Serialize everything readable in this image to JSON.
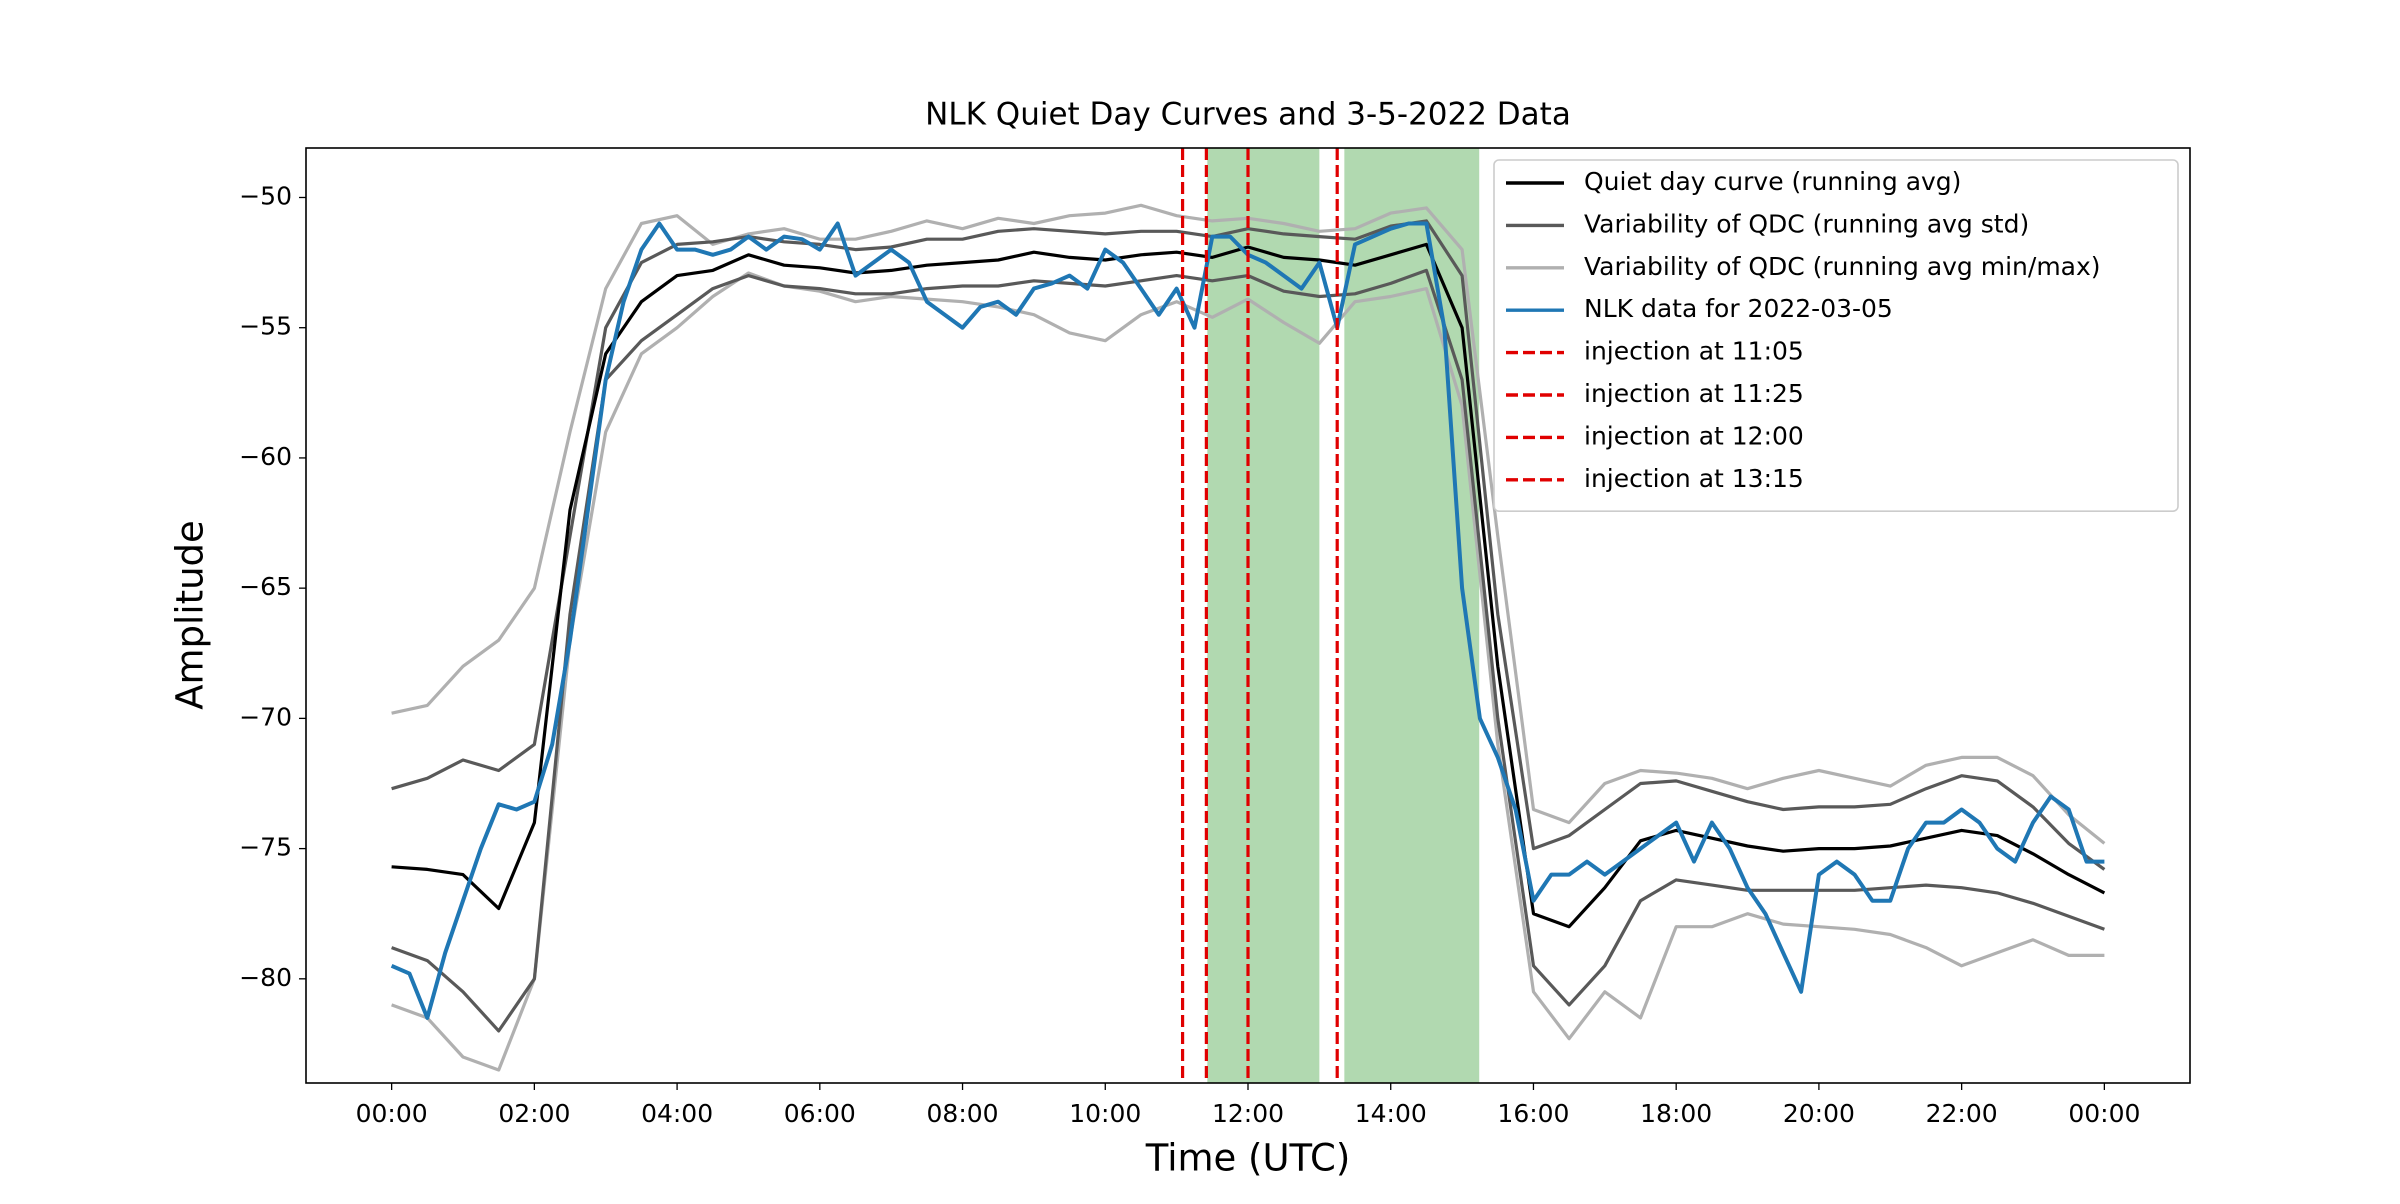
{
  "chart_data": {
    "type": "line",
    "title": "NLK Quiet Day Curves and 3-5-2022 Data",
    "x_label": "Time (UTC)",
    "y_label": "Amplitude",
    "xlim": [
      -1.2,
      25.2
    ],
    "ylim": [
      -84,
      -48.1
    ],
    "xticks": [
      {
        "value": 0,
        "label": "00:00"
      },
      {
        "value": 2,
        "label": "02:00"
      },
      {
        "value": 4,
        "label": "04:00"
      },
      {
        "value": 6,
        "label": "06:00"
      },
      {
        "value": 8,
        "label": "08:00"
      },
      {
        "value": 10,
        "label": "10:00"
      },
      {
        "value": 12,
        "label": "12:00"
      },
      {
        "value": 14,
        "label": "14:00"
      },
      {
        "value": 16,
        "label": "16:00"
      },
      {
        "value": 18,
        "label": "18:00"
      },
      {
        "value": 20,
        "label": "20:00"
      },
      {
        "value": 22,
        "label": "22:00"
      },
      {
        "value": 24,
        "label": "00:00"
      }
    ],
    "yticks": [
      {
        "value": -50,
        "label": "−50"
      },
      {
        "value": -55,
        "label": "−55"
      },
      {
        "value": -60,
        "label": "−60"
      },
      {
        "value": -65,
        "label": "−65"
      },
      {
        "value": -70,
        "label": "−70"
      },
      {
        "value": -75,
        "label": "−75"
      },
      {
        "value": -80,
        "label": "−80"
      }
    ],
    "legend": "upper right",
    "x": [
      0,
      0.5,
      1,
      1.5,
      2,
      2.5,
      3,
      3.5,
      4,
      4.5,
      5,
      5.5,
      6,
      6.5,
      7,
      7.5,
      8,
      8.5,
      9,
      9.5,
      10,
      10.5,
      11,
      11.5,
      12,
      12.5,
      13,
      13.5,
      14,
      14.5,
      15,
      15.5,
      16,
      16.5,
      17,
      17.5,
      18,
      18.5,
      19,
      19.5,
      20,
      20.5,
      21,
      21.5,
      22,
      22.5,
      23,
      23.5,
      24
    ],
    "series": [
      {
        "name": "Quiet day curve (running avg)",
        "color": "#000000",
        "values": [
          -75.7,
          -75.8,
          -76.0,
          -77.3,
          -74.0,
          -62,
          -56,
          -54,
          -53,
          -52.8,
          -52.2,
          -52.6,
          -52.7,
          -52.9,
          -52.8,
          -52.6,
          -52.5,
          -52.4,
          -52.1,
          -52.3,
          -52.4,
          -52.2,
          -52.1,
          -52.3,
          -51.9,
          -52.3,
          -52.4,
          -52.6,
          -52.2,
          -51.8,
          -55,
          -68,
          -77.5,
          -78,
          -76.5,
          -74.7,
          -74.3,
          -74.6,
          -74.9,
          -75.1,
          -75.0,
          -75.0,
          -74.9,
          -74.6,
          -74.3,
          -74.5,
          -75.2,
          -76.0,
          -76.7
        ]
      },
      {
        "name": "Variability of QDC (running avg std)",
        "color": "#595959",
        "values": [
          -72.7,
          -72.3,
          -71.6,
          -72.0,
          -71,
          -63,
          -55,
          -52.5,
          -51.8,
          -51.7,
          -51.5,
          -51.7,
          -51.8,
          -52,
          -51.9,
          -51.6,
          -51.6,
          -51.3,
          -51.2,
          -51.3,
          -51.4,
          -51.3,
          -51.3,
          -51.5,
          -51.2,
          -51.4,
          -51.5,
          -51.6,
          -51.1,
          -50.9,
          -53,
          -66,
          -75,
          -74.5,
          -73.5,
          -72.5,
          -72.4,
          -72.8,
          -73.2,
          -73.5,
          -73.4,
          -73.4,
          -73.3,
          -72.7,
          -72.2,
          -72.4,
          -73.4,
          -74.8,
          -75.8
        ],
        "lower": [
          -78.8,
          -79.3,
          -80.5,
          -82.0,
          -80,
          -66,
          -57,
          -55.5,
          -54.5,
          -53.5,
          -53,
          -53.4,
          -53.5,
          -53.7,
          -53.7,
          -53.5,
          -53.4,
          -53.4,
          -53.2,
          -53.3,
          -53.4,
          -53.2,
          -53,
          -53.2,
          -53,
          -53.6,
          -53.8,
          -53.7,
          -53.3,
          -52.8,
          -57,
          -70,
          -79.5,
          -81,
          -79.5,
          -77,
          -76.2,
          -76.4,
          -76.6,
          -76.6,
          -76.6,
          -76.6,
          -76.5,
          -76.4,
          -76.5,
          -76.7,
          -77.1,
          -77.6,
          -78.1
        ]
      },
      {
        "name": "Variability of QDC (running avg min/max)",
        "color": "#b0b0b0",
        "values": [
          -69.8,
          -69.5,
          -68,
          -67.0,
          -65,
          -59,
          -53.5,
          -51,
          -50.7,
          -51.8,
          -51.4,
          -51.2,
          -51.6,
          -51.6,
          -51.3,
          -50.9,
          -51.2,
          -50.8,
          -51.0,
          -50.7,
          -50.6,
          -50.3,
          -50.7,
          -50.9,
          -50.8,
          -51.0,
          -51.3,
          -51.2,
          -50.6,
          -50.4,
          -52,
          -63,
          -73.5,
          -74,
          -72.5,
          -72,
          -72.1,
          -72.3,
          -72.7,
          -72.3,
          -72.0,
          -72.3,
          -72.6,
          -71.8,
          -71.5,
          -71.5,
          -72.2,
          -73.7,
          -74.8
        ],
        "lower": [
          -81,
          -81.5,
          -83,
          -83.5,
          -80,
          -67,
          -59,
          -56,
          -55,
          -53.8,
          -52.9,
          -53.4,
          -53.6,
          -54,
          -53.8,
          -53.9,
          -54,
          -54.2,
          -54.5,
          -55.2,
          -55.5,
          -54.5,
          -54,
          -54.6,
          -53.9,
          -54.8,
          -55.6,
          -54,
          -53.8,
          -53.5,
          -58,
          -71,
          -80.5,
          -82.3,
          -80.5,
          -81.5,
          -78,
          -78,
          -77.5,
          -77.9,
          -78,
          -78.1,
          -78.3,
          -78.8,
          -79.5,
          -79,
          -78.5,
          -79.1,
          -79.1
        ]
      },
      {
        "name": "NLK data for 2022-03-05",
        "color": "#1f77b4",
        "x": [
          0,
          0.25,
          0.5,
          0.75,
          1,
          1.25,
          1.5,
          1.75,
          2,
          2.25,
          2.5,
          2.75,
          3,
          3.25,
          3.5,
          3.75,
          4,
          4.25,
          4.5,
          4.75,
          5,
          5.25,
          5.5,
          5.75,
          6,
          6.25,
          6.5,
          6.75,
          7,
          7.25,
          7.5,
          7.75,
          8,
          8.25,
          8.5,
          8.75,
          9,
          9.25,
          9.5,
          9.75,
          10,
          10.25,
          10.5,
          10.75,
          11,
          11.25,
          11.5,
          11.75,
          12,
          12.25,
          12.5,
          12.75,
          13,
          13.25,
          13.5,
          13.75,
          14,
          14.25,
          14.5,
          14.75,
          15,
          15.25,
          15.5,
          15.75,
          16,
          16.25,
          16.5,
          16.75,
          17,
          17.25,
          17.5,
          17.75,
          18,
          18.25,
          18.5,
          18.75,
          19,
          19.25,
          19.5,
          19.75,
          20,
          20.25,
          20.5,
          20.75,
          21,
          21.25,
          21.5,
          21.75,
          22,
          22.25,
          22.5,
          22.75,
          23,
          23.25,
          23.5,
          23.75,
          24
        ],
        "values": [
          -79.5,
          -79.8,
          -81.5,
          -79,
          -77,
          -75,
          -73.3,
          -73.5,
          -73.2,
          -71,
          -67,
          -62,
          -57,
          -54,
          -52,
          -51,
          -52,
          -52,
          -52.2,
          -52,
          -51.5,
          -52,
          -51.5,
          -51.6,
          -52,
          -51,
          -53,
          -52.5,
          -52,
          -52.5,
          -54,
          -54.5,
          -55,
          -54.2,
          -54,
          -54.5,
          -53.5,
          -53.3,
          -53,
          -53.5,
          -52,
          -52.5,
          -53.5,
          -54.5,
          -53.5,
          -55,
          -51.5,
          -51.5,
          -52.2,
          -52.5,
          -53,
          -53.5,
          -52.5,
          -55,
          -51.8,
          -51.5,
          -51.2,
          -51,
          -51,
          -55,
          -65,
          -70,
          -71.5,
          -73.5,
          -77,
          -76,
          -76,
          -75.5,
          -76,
          -75.5,
          -75,
          -74.5,
          -74,
          -75.5,
          -74,
          -75,
          -76.5,
          -77.5,
          -79,
          -80.5,
          -76,
          -75.5,
          -76,
          -77,
          -77,
          -75,
          -74,
          -74,
          -73.5,
          -74,
          -75,
          -75.5,
          -74,
          -73,
          -73.5,
          -75.5,
          -75.5
        ]
      }
    ],
    "injections": [
      {
        "label": "injection at 11:05",
        "x": 11.0833
      },
      {
        "label": "injection at 11:25",
        "x": 11.4167
      },
      {
        "label": "injection at 12:00",
        "x": 12
      },
      {
        "label": "injection at 13:15",
        "x": 13.25
      }
    ],
    "injection_color": "#e00000",
    "shaded_spans": [
      [
        11.43,
        13.0
      ],
      [
        13.35,
        15.24
      ]
    ],
    "shade_color": "#b1d9b0"
  }
}
